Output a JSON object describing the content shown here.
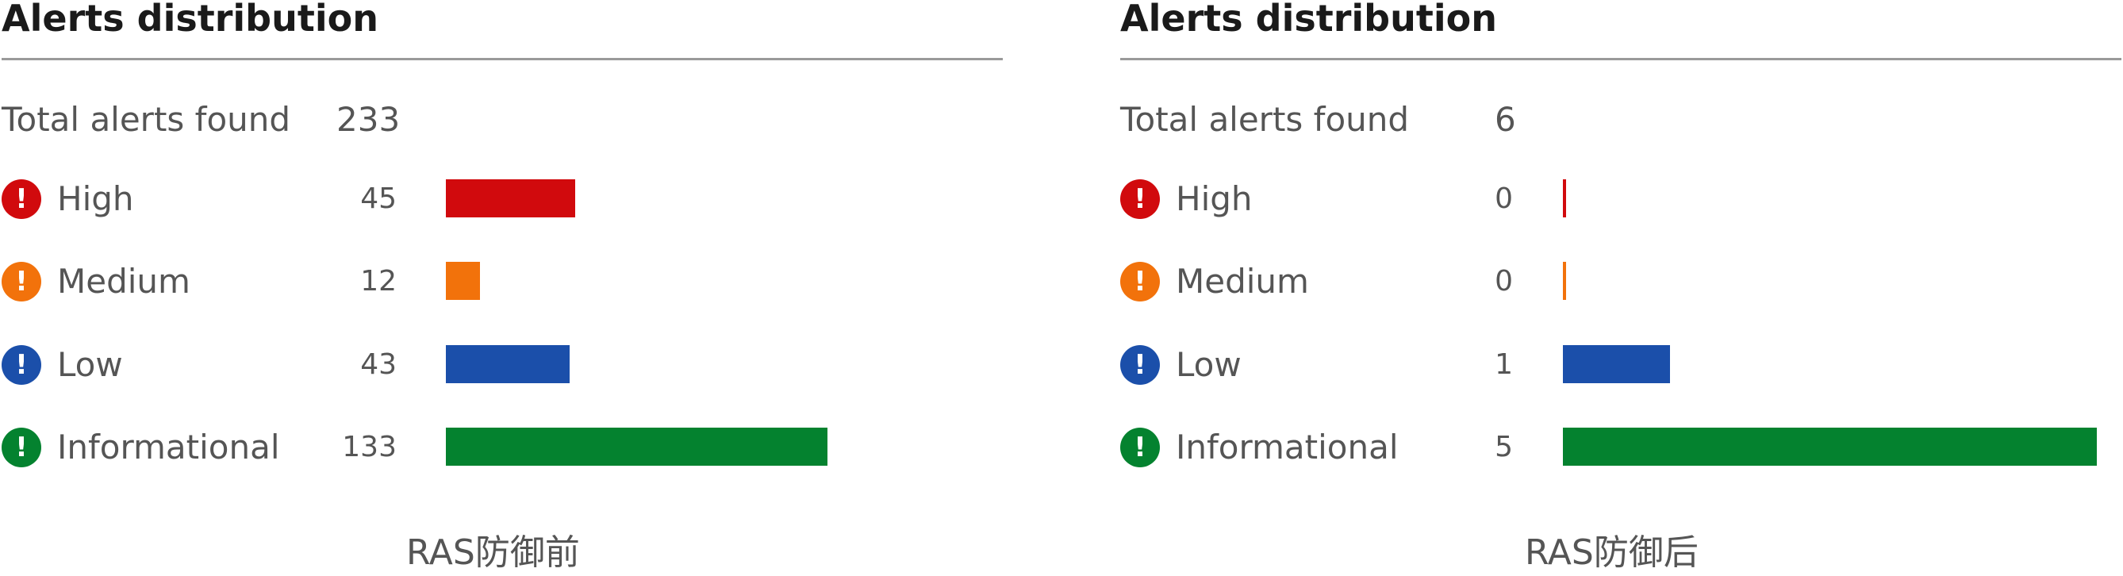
{
  "panels": [
    {
      "title": "Alerts distribution",
      "total_label": "Total alerts found",
      "total_value": "233",
      "rows": [
        {
          "label": "High",
          "count": "45",
          "icon": "exclamation-icon"
        },
        {
          "label": "Medium",
          "count": "12",
          "icon": "exclamation-icon"
        },
        {
          "label": "Low",
          "count": "43",
          "icon": "exclamation-icon"
        },
        {
          "label": "Informational",
          "count": "133",
          "icon": "exclamation-icon"
        }
      ],
      "caption": "RAS防御前"
    },
    {
      "title": "Alerts distribution",
      "total_label": "Total alerts found",
      "total_value": "6",
      "rows": [
        {
          "label": "High",
          "count": "0",
          "icon": "exclamation-icon"
        },
        {
          "label": "Medium",
          "count": "0",
          "icon": "exclamation-icon"
        },
        {
          "label": "Low",
          "count": "1",
          "icon": "exclamation-icon"
        },
        {
          "label": "Informational",
          "count": "5",
          "icon": "exclamation-icon"
        }
      ],
      "caption": "RAS防御后"
    }
  ],
  "colors": {
    "high": "#d10a0d",
    "medium": "#f2720b",
    "low": "#1b4faa",
    "informational": "#04822f",
    "divider": "#9a9a9a"
  },
  "chart_data": [
    {
      "type": "bar",
      "orientation": "horizontal",
      "title": "Alerts distribution",
      "categories": [
        "High",
        "Medium",
        "Low",
        "Informational"
      ],
      "values": [
        45,
        12,
        43,
        133
      ],
      "total": 233,
      "caption": "RAS防御前"
    },
    {
      "type": "bar",
      "orientation": "horizontal",
      "title": "Alerts distribution",
      "categories": [
        "High",
        "Medium",
        "Low",
        "Informational"
      ],
      "values": [
        0,
        0,
        1,
        5
      ],
      "total": 6,
      "caption": "RAS防御后"
    }
  ]
}
